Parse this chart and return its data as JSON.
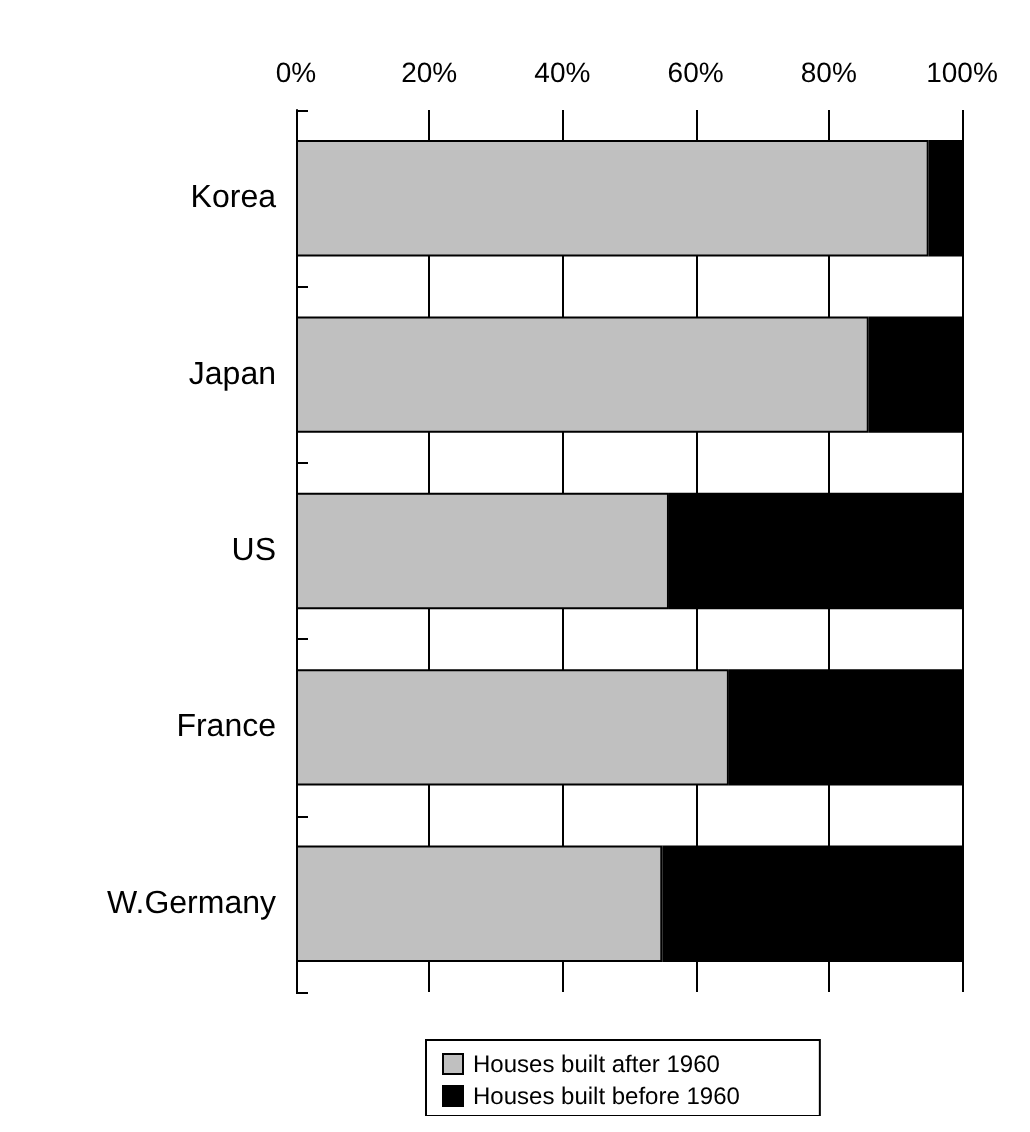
{
  "chart_data": {
    "type": "bar",
    "orientation": "horizontal",
    "stacked": true,
    "categories": [
      "Korea",
      "Japan",
      "US",
      "France",
      "W.Germany"
    ],
    "series": [
      {
        "name": "Houses built after 1960",
        "color": "#c0c0c0",
        "values": [
          95,
          86,
          56,
          65,
          55
        ]
      },
      {
        "name": "Houses built before 1960",
        "color": "#000000",
        "values": [
          5,
          14,
          44,
          35,
          45
        ]
      }
    ],
    "xlim": [
      0,
      100
    ],
    "xticks": [
      {
        "value": 0,
        "label": "0%"
      },
      {
        "value": 20,
        "label": "20%"
      },
      {
        "value": 40,
        "label": "40%"
      },
      {
        "value": 60,
        "label": "60%"
      },
      {
        "value": 80,
        "label": "80%"
      },
      {
        "value": 100,
        "label": "100%"
      }
    ],
    "grid": "x",
    "legend": "bottom"
  }
}
